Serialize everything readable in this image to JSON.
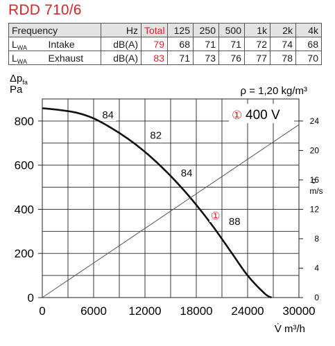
{
  "title": "RDD 710/6",
  "noise_table": {
    "header": [
      "Frequency",
      "Hz",
      "Total",
      "125",
      "250",
      "500",
      "1k",
      "2k",
      "4k"
    ],
    "rows": [
      {
        "label": "L",
        "label_sub": "WA",
        "name": "Intake",
        "unit": "dB(A)",
        "total": "79",
        "values": [
          "68",
          "71",
          "71",
          "72",
          "74",
          "68"
        ]
      },
      {
        "label": "L",
        "label_sub": "WA",
        "name": "Exhaust",
        "unit": "dB(A)",
        "total": "83",
        "values": [
          "71",
          "73",
          "76",
          "77",
          "78",
          "70"
        ]
      }
    ]
  },
  "chart_data": {
    "type": "line",
    "density_note": "ρ = 1,20 kg/m³",
    "curve_label_marker": "①",
    "curve_label_text": "400 V",
    "ylabel_line1": "Δp",
    "ylabel_sub": "fa",
    "ylabel_line2": "Pa",
    "xlabel": "V̇ m³/h",
    "xlim": [
      0,
      30000
    ],
    "ylim": [
      0,
      900
    ],
    "x_ticks": [
      "0",
      "6000",
      "12000",
      "18000",
      "24000",
      "30000"
    ],
    "y_ticks": [
      "0",
      "200",
      "400",
      "600",
      "800"
    ],
    "right_axis": {
      "label_line1": "c",
      "label_line2": "m/s",
      "lim": [
        0,
        27
      ],
      "ticks": [
        "0",
        "4",
        "8",
        "12",
        "16",
        "20",
        "24"
      ]
    },
    "grid": true,
    "series": [
      {
        "name": "①",
        "color": "#111111",
        "x": [
          0,
          2000,
          4000,
          6000,
          8000,
          10000,
          12000,
          14000,
          16000,
          18000,
          20000,
          22000,
          24000,
          26000,
          26800
        ],
        "y": [
          858,
          850,
          838,
          812,
          770,
          720,
          660,
          590,
          510,
          420,
          320,
          210,
          100,
          18,
          0
        ]
      },
      {
        "name": "c",
        "color": "#555555",
        "axis": "right",
        "x": [
          0,
          30000
        ],
        "y": [
          0,
          23.5
        ]
      }
    ],
    "annotations": [
      {
        "text": "84",
        "x": 7000,
        "y": 812
      },
      {
        "text": "82",
        "x": 12600,
        "y": 720
      },
      {
        "text": "84",
        "x": 16200,
        "y": 548
      },
      {
        "text": "①",
        "x": 19700,
        "y": 355
      },
      {
        "text": "88",
        "x": 21800,
        "y": 330
      }
    ]
  }
}
